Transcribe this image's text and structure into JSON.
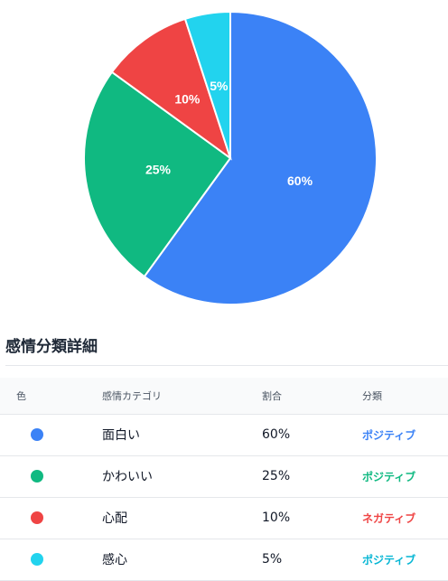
{
  "chart_data": {
    "type": "pie",
    "slices": [
      {
        "label": "面白い",
        "value": 60,
        "display": "60%",
        "color": "#3b82f6"
      },
      {
        "label": "かわいい",
        "value": 25,
        "display": "25%",
        "color": "#10b981"
      },
      {
        "label": "心配",
        "value": 10,
        "display": "10%",
        "color": "#ef4444"
      },
      {
        "label": "感心",
        "value": 5,
        "display": "5%",
        "color": "#22d3ee"
      }
    ],
    "start_angle": "12 o'clock",
    "direction": "clockwise",
    "legend": "none"
  },
  "details": {
    "title": "感情分類詳細",
    "headers": {
      "color": "色",
      "category": "感情カテゴリ",
      "ratio": "割合",
      "classification": "分類"
    },
    "rows": [
      {
        "color": "#3b82f6",
        "category": "面白い",
        "ratio": "60%",
        "classification": "ポジティブ",
        "class_color": "#3b82f6"
      },
      {
        "color": "#10b981",
        "category": "かわいい",
        "ratio": "25%",
        "classification": "ポジティブ",
        "class_color": "#10b981"
      },
      {
        "color": "#ef4444",
        "category": "心配",
        "ratio": "10%",
        "classification": "ネガティブ",
        "class_color": "#ef4444"
      },
      {
        "color": "#22d3ee",
        "category": "感心",
        "ratio": "5%",
        "classification": "ポジティブ",
        "class_color": "#06b6d4"
      }
    ]
  }
}
